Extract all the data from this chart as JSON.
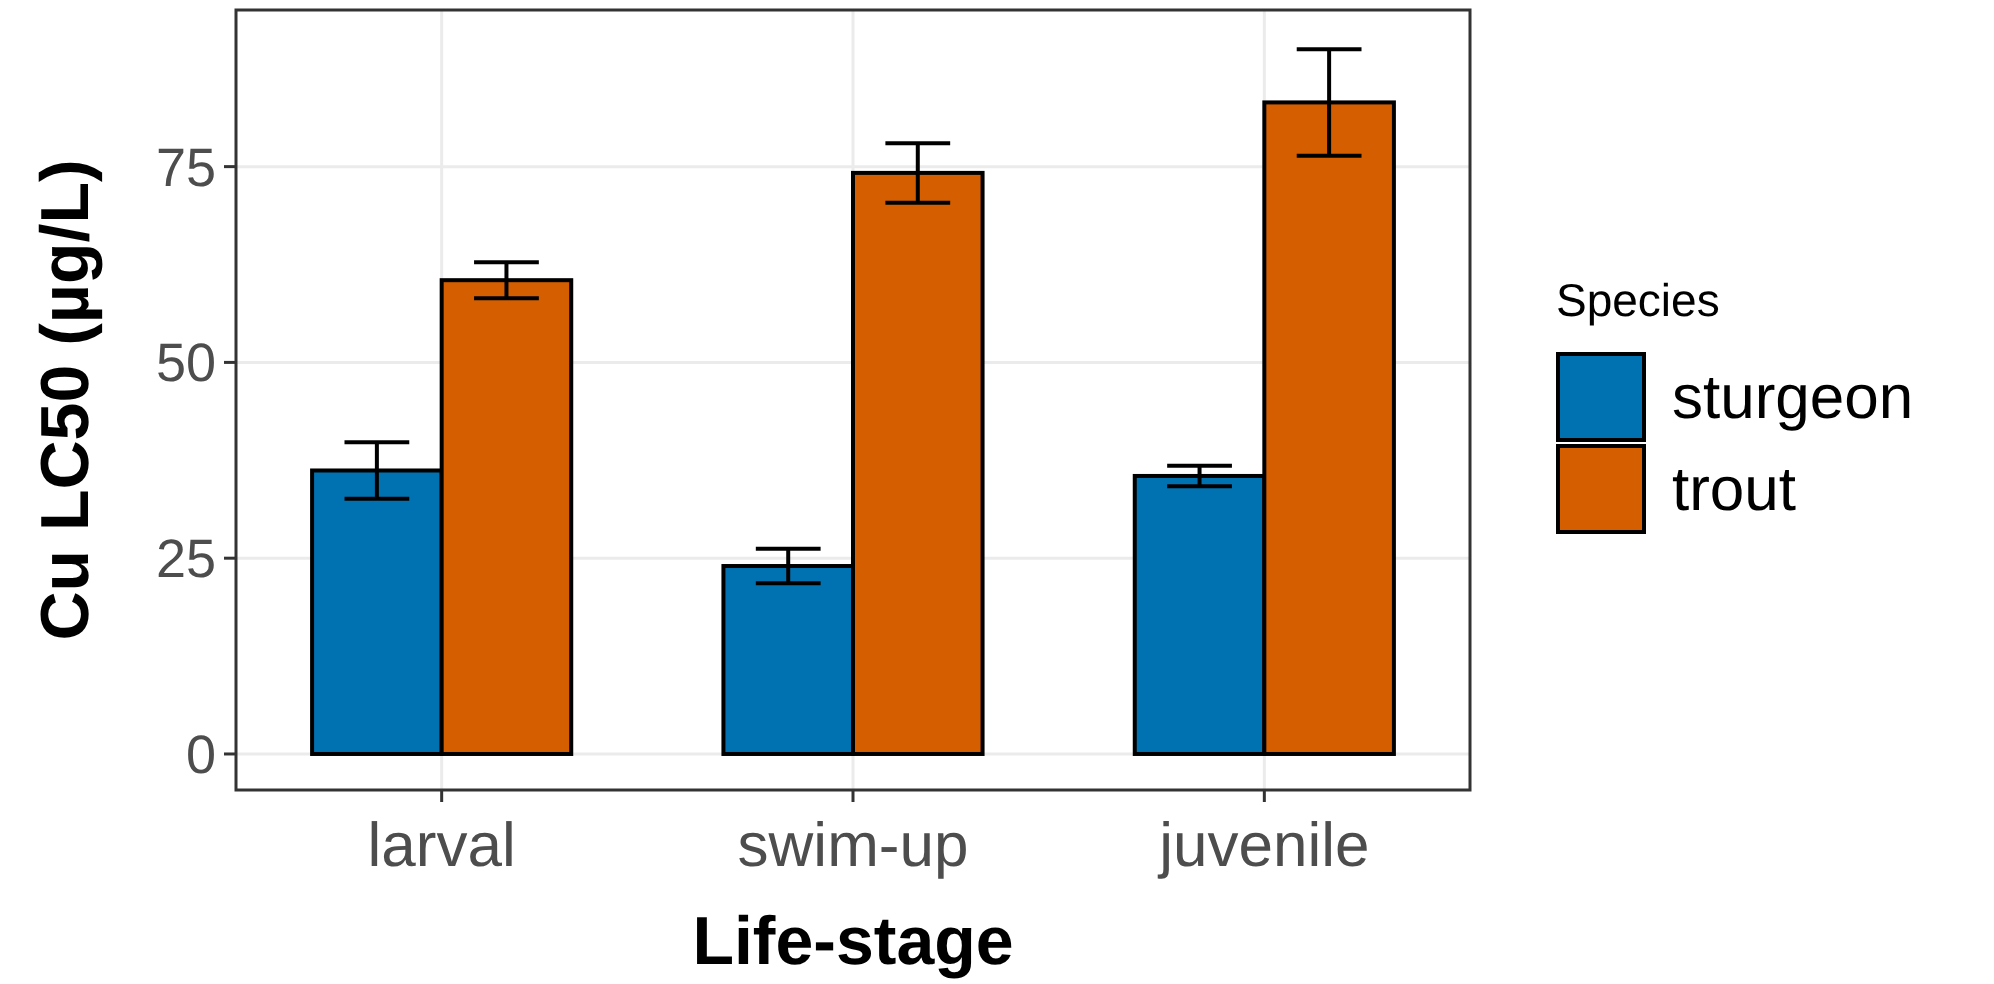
{
  "chart_data": {
    "type": "bar",
    "xlabel": "Life-stage",
    "ylabel": "Cu LC50 (µg/L)",
    "legend_title": "Species",
    "categories": [
      "larval",
      "swim-up",
      "juvenile"
    ],
    "series": [
      {
        "name": "sturgeon",
        "color": "#0072b2",
        "values": [
          36.2,
          24.0,
          35.5
        ],
        "errors": [
          3.6,
          2.2,
          1.3
        ]
      },
      {
        "name": "trout",
        "color": "#d55e00",
        "values": [
          60.5,
          74.2,
          83.2
        ],
        "errors": [
          2.3,
          3.8,
          6.8
        ]
      }
    ],
    "ylim": [
      -4.6,
      95
    ],
    "yticks": [
      0,
      25,
      50,
      75
    ],
    "grid": true,
    "legend": "right"
  }
}
